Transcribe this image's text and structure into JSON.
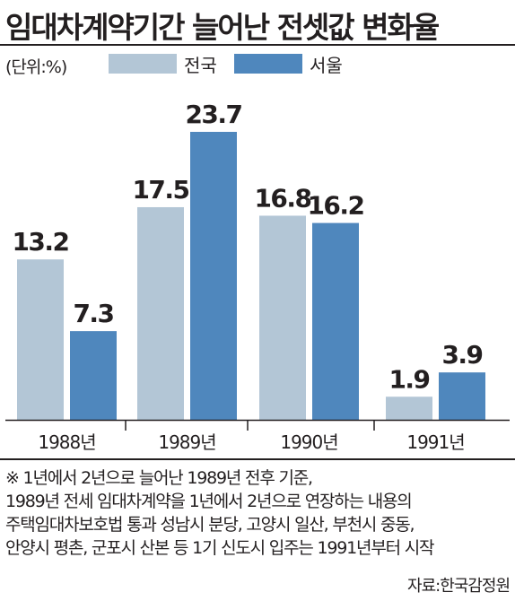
{
  "title": "임대차계약기간 늘어난 전셋값 변화율",
  "unit_label": "(단위:%)",
  "colors": {
    "nation": "#b3c6d6",
    "seoul": "#4f87bd",
    "text": "#231f20"
  },
  "chart_data": {
    "type": "bar",
    "categories": [
      "1988년",
      "1989년",
      "1990년",
      "1991년"
    ],
    "series": [
      {
        "name": "전국",
        "values": [
          13.2,
          17.5,
          16.8,
          1.9
        ]
      },
      {
        "name": "서울",
        "values": [
          7.3,
          23.7,
          16.2,
          3.9
        ]
      }
    ],
    "value_labels": [
      [
        "13.2",
        "17.5",
        "16.8",
        "1.9"
      ],
      [
        "7.3",
        "23.7",
        "16.2",
        "3.9"
      ]
    ],
    "ylim": [
      0,
      23.7
    ],
    "grid": false,
    "legend": "top"
  },
  "notes": [
    "※ 1년에서 2년으로 늘어난 1989년 전후 기준,",
    "1989년 전세 임대차계약을 1년에서 2년으로 연장하는 내용의",
    "주택임대차보호법 통과 성남시 분당, 고양시 일산, 부천시 중동,",
    "안양시 평촌, 군포시 산본 등 1기 신도시 입주는 1991년부터 시작"
  ],
  "source": "자료:한국감정원"
}
